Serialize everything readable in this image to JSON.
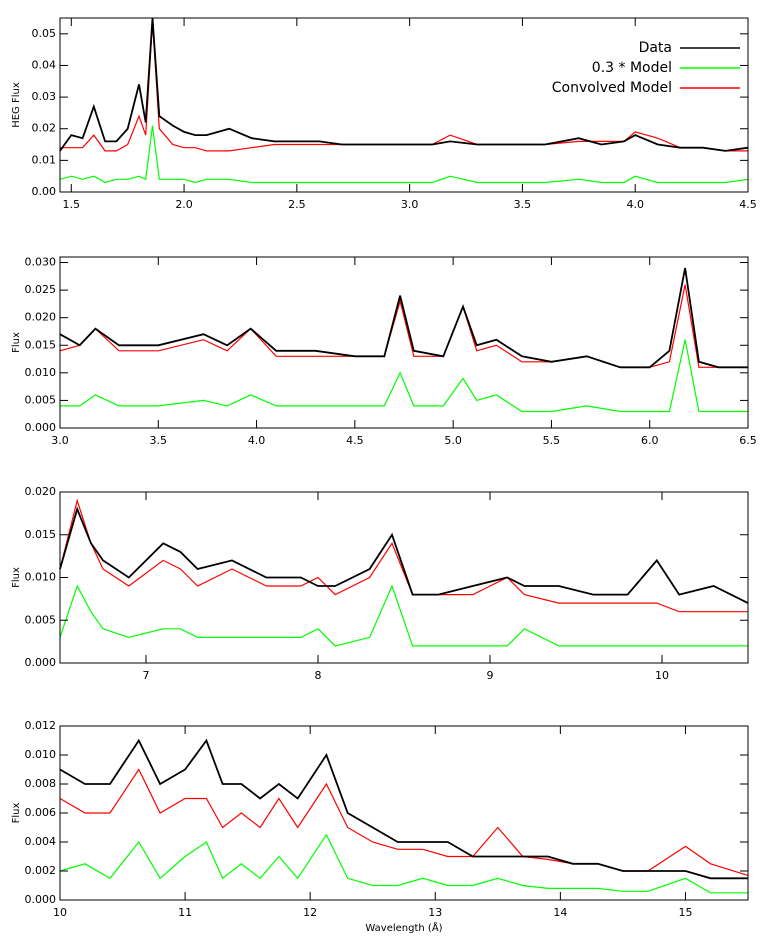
{
  "chart_data": [
    {
      "type": "line",
      "ylabel": "HEG Flux",
      "x": [
        1.45,
        1.5,
        1.55,
        1.6,
        1.65,
        1.7,
        1.75,
        1.8,
        1.83,
        1.86,
        1.89,
        1.95,
        2.0,
        2.05,
        2.1,
        2.2,
        2.3,
        2.4,
        2.5,
        2.6,
        2.7,
        2.8,
        2.9,
        3.0,
        3.1,
        3.18,
        3.3,
        3.4,
        3.5,
        3.6,
        3.75,
        3.85,
        3.95,
        4.0,
        4.1,
        4.2,
        4.3,
        4.4,
        4.5
      ],
      "series": [
        {
          "name": "Data",
          "color": "#000000",
          "values": [
            0.013,
            0.018,
            0.017,
            0.027,
            0.016,
            0.016,
            0.02,
            0.034,
            0.022,
            0.055,
            0.024,
            0.021,
            0.019,
            0.018,
            0.018,
            0.02,
            0.017,
            0.016,
            0.016,
            0.016,
            0.015,
            0.015,
            0.015,
            0.015,
            0.015,
            0.016,
            0.015,
            0.015,
            0.015,
            0.015,
            0.017,
            0.015,
            0.016,
            0.018,
            0.015,
            0.014,
            0.014,
            0.013,
            0.014
          ]
        },
        {
          "name": "0.3 * Model",
          "color": "#00ff00",
          "values": [
            0.004,
            0.005,
            0.004,
            0.005,
            0.003,
            0.004,
            0.004,
            0.005,
            0.004,
            0.021,
            0.004,
            0.004,
            0.004,
            0.003,
            0.004,
            0.004,
            0.003,
            0.003,
            0.003,
            0.003,
            0.003,
            0.003,
            0.003,
            0.003,
            0.003,
            0.005,
            0.003,
            0.003,
            0.003,
            0.003,
            0.004,
            0.003,
            0.003,
            0.005,
            0.003,
            0.003,
            0.003,
            0.003,
            0.004
          ]
        },
        {
          "name": "Convolved Model",
          "color": "#ff0000",
          "values": [
            0.014,
            0.014,
            0.014,
            0.018,
            0.013,
            0.013,
            0.015,
            0.024,
            0.018,
            0.054,
            0.02,
            0.015,
            0.014,
            0.014,
            0.013,
            0.013,
            0.014,
            0.015,
            0.015,
            0.015,
            0.015,
            0.015,
            0.015,
            0.015,
            0.015,
            0.018,
            0.015,
            0.015,
            0.015,
            0.015,
            0.016,
            0.016,
            0.016,
            0.019,
            0.017,
            0.014,
            0.014,
            0.013,
            0.013
          ]
        }
      ],
      "xlim": [
        1.45,
        4.5
      ],
      "xticks": [
        1.5,
        {
          "value": 2,
          "label": "2.0"
        },
        2.5,
        {
          "value": 3,
          "label": "3.0"
        },
        3.5,
        {
          "value": 4,
          "label": "4.0"
        },
        4.5
      ],
      "ylim": [
        0,
        0.055
      ],
      "yticks": [
        {
          "value": 0,
          "label": "0.00"
        },
        {
          "value": 0.01,
          "label": "0.01"
        },
        {
          "value": 0.02,
          "label": "0.02"
        },
        {
          "value": 0.03,
          "label": "0.03"
        },
        {
          "value": 0.04,
          "label": "0.04"
        },
        {
          "value": 0.05,
          "label": "0.05"
        }
      ],
      "legend": "upper right"
    },
    {
      "type": "line",
      "ylabel": "Flux",
      "x": [
        3.0,
        3.1,
        3.18,
        3.3,
        3.5,
        3.73,
        3.85,
        3.97,
        4.1,
        4.3,
        4.5,
        4.65,
        4.73,
        4.8,
        4.95,
        5.05,
        5.12,
        5.22,
        5.35,
        5.5,
        5.68,
        5.85,
        6.0,
        6.1,
        6.18,
        6.25,
        6.35,
        6.5
      ],
      "series": [
        {
          "color": "#000000",
          "values": [
            0.017,
            0.015,
            0.018,
            0.015,
            0.015,
            0.017,
            0.015,
            0.018,
            0.014,
            0.014,
            0.013,
            0.013,
            0.024,
            0.014,
            0.013,
            0.022,
            0.015,
            0.016,
            0.013,
            0.012,
            0.013,
            0.011,
            0.011,
            0.014,
            0.029,
            0.012,
            0.011,
            0.011
          ]
        },
        {
          "color": "#00ff00",
          "values": [
            0.004,
            0.004,
            0.006,
            0.004,
            0.004,
            0.005,
            0.004,
            0.006,
            0.004,
            0.004,
            0.004,
            0.004,
            0.01,
            0.004,
            0.004,
            0.009,
            0.005,
            0.006,
            0.003,
            0.003,
            0.004,
            0.003,
            0.003,
            0.003,
            0.016,
            0.003,
            0.003,
            0.003
          ]
        },
        {
          "color": "#ff0000",
          "values": [
            0.014,
            0.015,
            0.018,
            0.014,
            0.014,
            0.016,
            0.014,
            0.018,
            0.013,
            0.013,
            0.013,
            0.013,
            0.023,
            0.013,
            0.013,
            0.022,
            0.014,
            0.015,
            0.012,
            0.012,
            0.013,
            0.011,
            0.011,
            0.012,
            0.026,
            0.011,
            0.011,
            0.011
          ]
        }
      ],
      "xlim": [
        3.0,
        6.5
      ],
      "xticks": [
        {
          "value": 3,
          "label": "3.0"
        },
        3.5,
        {
          "value": 4,
          "label": "4.0"
        },
        4.5,
        {
          "value": 5,
          "label": "5.0"
        },
        5.5,
        {
          "value": 6,
          "label": "6.0"
        },
        6.5
      ],
      "ylim": [
        0,
        0.031
      ],
      "yticks": [
        {
          "value": 0,
          "label": "0.000"
        },
        {
          "value": 0.005,
          "label": "0.005"
        },
        {
          "value": 0.01,
          "label": "0.010"
        },
        {
          "value": 0.015,
          "label": "0.015"
        },
        {
          "value": 0.02,
          "label": "0.020"
        },
        {
          "value": 0.025,
          "label": "0.025"
        },
        {
          "value": 0.03,
          "label": "0.030"
        }
      ]
    },
    {
      "type": "line",
      "ylabel": "Flux",
      "x": [
        6.5,
        6.6,
        6.68,
        6.75,
        6.9,
        7.1,
        7.2,
        7.3,
        7.5,
        7.7,
        7.9,
        8.0,
        8.1,
        8.3,
        8.43,
        8.55,
        8.7,
        8.9,
        9.1,
        9.2,
        9.4,
        9.6,
        9.8,
        9.97,
        10.1,
        10.3,
        10.5
      ],
      "series": [
        {
          "color": "#000000",
          "values": [
            0.011,
            0.018,
            0.014,
            0.012,
            0.01,
            0.014,
            0.013,
            0.011,
            0.012,
            0.01,
            0.01,
            0.009,
            0.009,
            0.011,
            0.015,
            0.008,
            0.008,
            0.009,
            0.01,
            0.009,
            0.009,
            0.008,
            0.008,
            0.012,
            0.008,
            0.009,
            0.007
          ]
        },
        {
          "color": "#00ff00",
          "values": [
            0.003,
            0.009,
            0.006,
            0.004,
            0.003,
            0.004,
            0.004,
            0.003,
            0.003,
            0.003,
            0.003,
            0.004,
            0.002,
            0.003,
            0.009,
            0.002,
            0.002,
            0.002,
            0.002,
            0.004,
            0.002,
            0.002,
            0.002,
            0.002,
            0.002,
            0.002,
            0.002
          ]
        },
        {
          "color": "#ff0000",
          "values": [
            0.011,
            0.019,
            0.014,
            0.011,
            0.009,
            0.012,
            0.011,
            0.009,
            0.011,
            0.009,
            0.009,
            0.01,
            0.008,
            0.01,
            0.014,
            0.008,
            0.008,
            0.008,
            0.01,
            0.008,
            0.007,
            0.007,
            0.007,
            0.007,
            0.006,
            0.006,
            0.006
          ]
        }
      ],
      "xlim": [
        6.5,
        10.5
      ],
      "xticks": [
        7,
        8,
        9,
        10
      ],
      "ylim": [
        0,
        0.02
      ],
      "yticks": [
        {
          "value": 0,
          "label": "0.000"
        },
        {
          "value": 0.005,
          "label": "0.005"
        },
        {
          "value": 0.01,
          "label": "0.010"
        },
        {
          "value": 0.015,
          "label": "0.015"
        },
        {
          "value": 0.02,
          "label": "0.020"
        }
      ]
    },
    {
      "type": "line",
      "ylabel": "Flux",
      "xlabel": "Wavelength (Å)",
      "x": [
        10.0,
        10.2,
        10.4,
        10.63,
        10.8,
        11.0,
        11.17,
        11.3,
        11.45,
        11.6,
        11.75,
        11.9,
        12.13,
        12.3,
        12.5,
        12.7,
        12.9,
        13.1,
        13.3,
        13.5,
        13.7,
        13.9,
        14.1,
        14.3,
        14.5,
        14.7,
        15.0,
        15.2,
        15.5
      ],
      "series": [
        {
          "color": "#000000",
          "values": [
            0.009,
            0.008,
            0.008,
            0.011,
            0.008,
            0.009,
            0.011,
            0.008,
            0.008,
            0.007,
            0.008,
            0.007,
            0.01,
            0.006,
            0.005,
            0.004,
            0.004,
            0.004,
            0.003,
            0.003,
            0.003,
            0.003,
            0.0025,
            0.0025,
            0.002,
            0.002,
            0.002,
            0.0015,
            0.0015
          ]
        },
        {
          "color": "#00ff00",
          "values": [
            0.002,
            0.0025,
            0.0015,
            0.004,
            0.0015,
            0.003,
            0.004,
            0.0015,
            0.0025,
            0.0015,
            0.003,
            0.0015,
            0.0045,
            0.0015,
            0.001,
            0.001,
            0.0015,
            0.001,
            0.001,
            0.0015,
            0.001,
            0.0008,
            0.0008,
            0.0008,
            0.0006,
            0.0006,
            0.0015,
            0.0005,
            0.0005
          ]
        },
        {
          "color": "#ff0000",
          "values": [
            0.007,
            0.006,
            0.006,
            0.009,
            0.006,
            0.007,
            0.007,
            0.005,
            0.006,
            0.005,
            0.007,
            0.005,
            0.008,
            0.005,
            0.004,
            0.0035,
            0.0035,
            0.003,
            0.003,
            0.005,
            0.003,
            0.0028,
            0.0025,
            0.0025,
            0.002,
            0.002,
            0.0037,
            0.0025,
            0.0017
          ]
        }
      ],
      "xlim": [
        10,
        15.5
      ],
      "xticks": [
        10,
        11,
        12,
        13,
        14,
        15
      ],
      "ylim": [
        0,
        0.012
      ],
      "yticks": [
        {
          "value": 0,
          "label": "0.000"
        },
        {
          "value": 0.002,
          "label": "0.002"
        },
        {
          "value": 0.004,
          "label": "0.004"
        },
        {
          "value": 0.006,
          "label": "0.006"
        },
        {
          "value": 0.008,
          "label": "0.008"
        },
        {
          "value": 0.01,
          "label": "0.010"
        },
        {
          "value": 0.012,
          "label": "0.012"
        }
      ]
    }
  ]
}
